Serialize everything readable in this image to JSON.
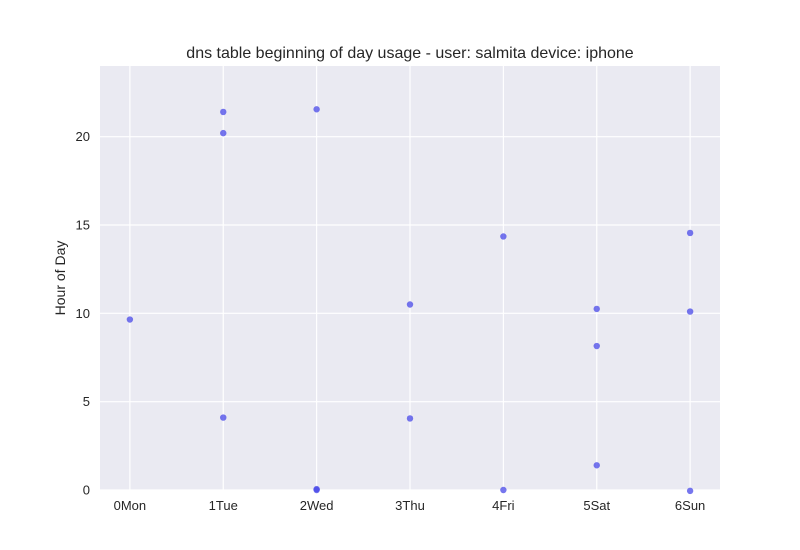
{
  "chart_data": {
    "type": "scatter",
    "title": "dns table beginning of day usage -  user: salmita device: iphone",
    "xlabel": "",
    "ylabel": "Hour of Day",
    "x_categories": [
      "0Mon",
      "1Tue",
      "2Wed",
      "3Thu",
      "4Fri",
      "5Sat",
      "6Sun"
    ],
    "xlim": [
      -0.32,
      6.32
    ],
    "ylim": [
      0,
      24
    ],
    "y_ticks": [
      0,
      5,
      10,
      15,
      20
    ],
    "grid": true,
    "legend": "none",
    "series": [
      {
        "color": "#4848e8",
        "points": [
          {
            "x": 0,
            "y": 9.65
          },
          {
            "x": 1,
            "y": 21.4
          },
          {
            "x": 1,
            "y": 20.2
          },
          {
            "x": 1,
            "y": 4.1
          },
          {
            "x": 2,
            "y": 21.55
          },
          {
            "x": 2,
            "y": 0.05
          },
          {
            "x": 2,
            "y": 0.0
          },
          {
            "x": 3,
            "y": 10.5
          },
          {
            "x": 3,
            "y": 4.05
          },
          {
            "x": 4,
            "y": 14.35
          },
          {
            "x": 4,
            "y": 0.0
          },
          {
            "x": 5,
            "y": 10.25
          },
          {
            "x": 5,
            "y": 8.15
          },
          {
            "x": 5,
            "y": 1.4
          },
          {
            "x": 6,
            "y": 14.55
          },
          {
            "x": 6,
            "y": 10.1
          },
          {
            "x": 6,
            "y": -0.05
          }
        ]
      }
    ]
  },
  "colors": {
    "plot_background": "#eaeaf2",
    "grid": "#ffffff",
    "text": "#262626"
  }
}
